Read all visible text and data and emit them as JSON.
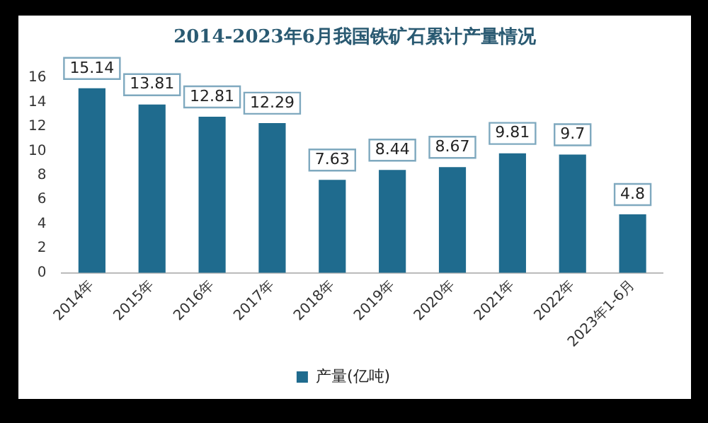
{
  "chart_data": {
    "type": "bar",
    "title": "2014-2023年6月我国铁矿石累计产量情况",
    "categories": [
      "2014年",
      "2015年",
      "2016年",
      "2017年",
      "2018年",
      "2019年",
      "2020年",
      "2021年",
      "2022年",
      "2023年1-6月"
    ],
    "series": [
      {
        "name": "产量(亿吨)",
        "color": "#1f6b8e",
        "values": [
          15.14,
          13.81,
          12.81,
          12.29,
          7.63,
          8.44,
          8.67,
          9.81,
          9.7,
          4.8
        ]
      }
    ],
    "ylim": [
      0,
      16
    ],
    "yticks": [
      0,
      2,
      4,
      6,
      8,
      10,
      12,
      14,
      16
    ],
    "grid": false,
    "legend": "bottom",
    "data_labels": true
  }
}
